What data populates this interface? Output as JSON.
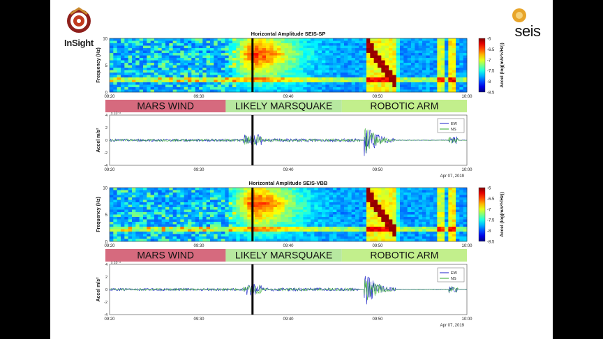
{
  "logos": {
    "insight": {
      "text": "InSight",
      "icon": "insight-mission-logo"
    },
    "seis": {
      "text": "seis",
      "icon": "seis-instrument-logo"
    }
  },
  "colors": {
    "mars_wind": "#d66a7e",
    "marsquake": "#b7e8a0",
    "robotic_arm": "#c2ef8c",
    "ew_trace": "#1b22c8",
    "ns_trace": "#2faa2a",
    "event_marker": "#000000"
  },
  "chart_data": [
    {
      "type": "heatmap",
      "title": "Horizontal Amplitude SEIS-SP",
      "ylabel": "Frequency (Hz)",
      "y_ticks": [
        "10",
        "5",
        "0"
      ],
      "ylim": [
        0,
        10
      ],
      "x_ticks": [
        "09:20",
        "09:30",
        "09:40",
        "09:50",
        "10:00"
      ],
      "colorbar": {
        "label": "Accel (log(m/s²/√Hz))",
        "ticks": [
          "-6",
          "-6.5",
          "-7",
          "-7.5",
          "-8",
          "-8.5"
        ],
        "range": [
          -8.5,
          -6
        ],
        "colormap": "jet"
      },
      "event_time": "09:36",
      "events": [
        {
          "label": "MARS WIND",
          "start": "09:20",
          "end": "09:33"
        },
        {
          "label": "LIKELY MARSQUAKE",
          "start": "09:33",
          "end": "09:46"
        },
        {
          "label": "ROBOTIC ARM",
          "start": "09:46",
          "end": "10:00"
        }
      ]
    },
    {
      "type": "line",
      "ylabel": "Accel m/s²",
      "y_exponent": "x 10⁻⁸",
      "y_ticks": [
        "4",
        "2",
        "0",
        "-2",
        "-4"
      ],
      "ylim": [
        -4,
        4
      ],
      "x_ticks": [
        "09:20",
        "09:30",
        "09:40",
        "09:50",
        "10:00"
      ],
      "date": "Apr 07, 2019",
      "series": [
        {
          "name": "EW"
        },
        {
          "name": "NS"
        }
      ],
      "bursts": [
        {
          "start": "09:20",
          "end": "09:35",
          "amplitude": 0.2
        },
        {
          "start": "09:35",
          "end": "09:37",
          "amplitude": 0.9
        },
        {
          "start": "09:37",
          "end": "09:48",
          "amplitude": 0.25
        },
        {
          "start": "09:48.5",
          "end": "09:52",
          "amplitude": 3.0
        },
        {
          "start": "09:58",
          "end": "09:59",
          "amplitude": 0.6
        }
      ]
    },
    {
      "type": "heatmap",
      "title": "Horizontal Amplitude SEIS-VBB",
      "ylabel": "Frequency (Hz)",
      "y_ticks": [
        "10",
        "5",
        "0"
      ],
      "ylim": [
        0,
        10
      ],
      "x_ticks": [
        "09:20",
        "09:30",
        "09:40",
        "09:50",
        "10:00"
      ],
      "colorbar": {
        "label": "Accel (log(m/s²/√Hz))",
        "ticks": [
          "-6",
          "-6.5",
          "-7",
          "-7.5",
          "-8",
          "-8.5"
        ],
        "range": [
          -8.5,
          -6
        ],
        "colormap": "jet"
      },
      "event_time": "09:36",
      "events": [
        {
          "label": "MARS WIND",
          "start": "09:20",
          "end": "09:33"
        },
        {
          "label": "LIKELY MARSQUAKE",
          "start": "09:33",
          "end": "09:46"
        },
        {
          "label": "ROBOTIC ARM",
          "start": "09:46",
          "end": "10:00"
        }
      ]
    },
    {
      "type": "line",
      "ylabel": "Accel m/s²",
      "y_exponent": "x 10⁻⁸",
      "y_ticks": [
        "4",
        "2",
        "0",
        "-2",
        "-4"
      ],
      "ylim": [
        -4,
        4
      ],
      "x_ticks": [
        "09:20",
        "09:30",
        "09:40",
        "09:50",
        "10:00"
      ],
      "date": "Apr 07, 2019",
      "series": [
        {
          "name": "EW"
        },
        {
          "name": "NS"
        }
      ],
      "bursts": [
        {
          "start": "09:20",
          "end": "09:35",
          "amplitude": 0.2
        },
        {
          "start": "09:35",
          "end": "09:37",
          "amplitude": 0.9
        },
        {
          "start": "09:37",
          "end": "09:48",
          "amplitude": 0.25
        },
        {
          "start": "09:48.5",
          "end": "09:52",
          "amplitude": 3.0
        },
        {
          "start": "09:58",
          "end": "09:59",
          "amplitude": 0.6
        }
      ]
    }
  ]
}
